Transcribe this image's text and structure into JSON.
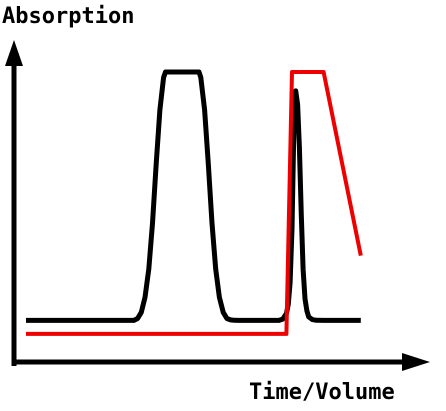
{
  "chart_data": {
    "type": "line",
    "title": "",
    "xlabel": "Time/Volume",
    "ylabel": "Absorption",
    "xlim": [
      0,
      100
    ],
    "ylim": [
      0,
      100
    ],
    "grid": false,
    "legend": "none",
    "series": [
      {
        "color": "#000000",
        "x": [
          0,
          29,
          30,
          31,
          32,
          33,
          34,
          35,
          36,
          37,
          37.5,
          38,
          46,
          46.5,
          47,
          48,
          49,
          50,
          51,
          52,
          53,
          54,
          55,
          56,
          57,
          60,
          68,
          69,
          70,
          70.5,
          71,
          71.5,
          72,
          72.5,
          73,
          73.5,
          74,
          74.5,
          75,
          75.5,
          76,
          77,
          78,
          80,
          90
        ],
        "values": [
          8,
          8,
          8.7,
          11,
          16.5,
          27,
          44,
          66,
          86,
          98,
          100,
          100,
          100,
          100,
          98,
          86,
          66,
          44,
          27,
          16.5,
          11,
          8.7,
          8.2,
          8.05,
          8,
          8,
          8,
          8.5,
          10.5,
          14,
          22,
          42,
          78,
          93,
          88,
          72,
          47,
          27,
          16,
          11.5,
          9.3,
          8.3,
          8.05,
          8,
          8
        ]
      },
      {
        "color": "#ee0000",
        "x": [
          0,
          70,
          71.5,
          80,
          90
        ],
        "values": [
          3,
          3,
          100,
          100,
          32
        ]
      }
    ]
  }
}
